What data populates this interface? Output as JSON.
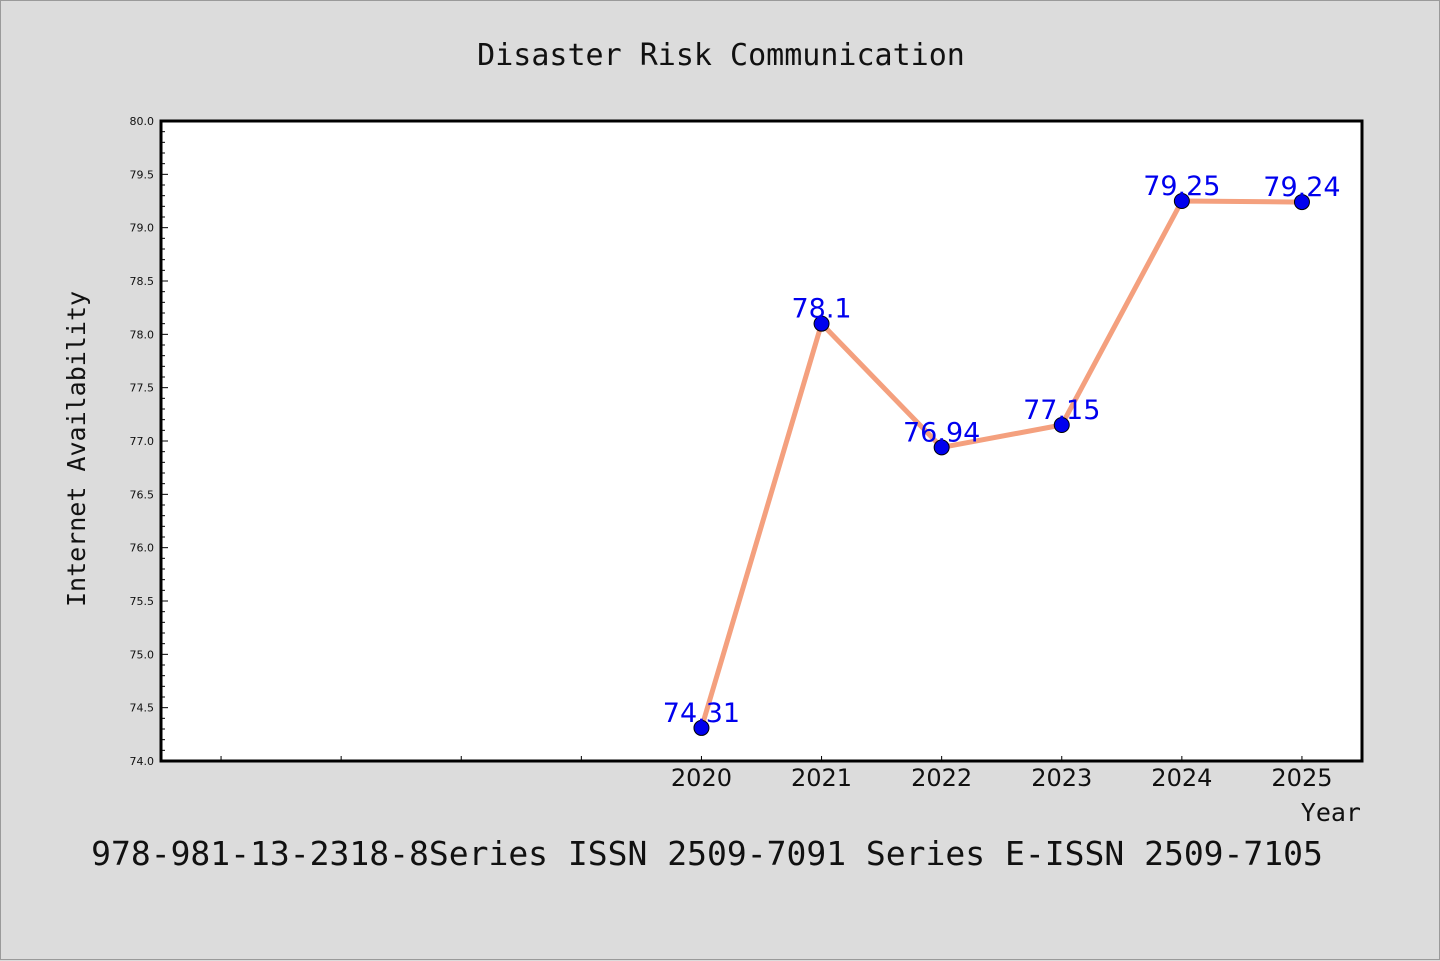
{
  "chart_data": {
    "type": "line",
    "title": "Disaster Risk Communication",
    "xlabel": "Year",
    "ylabel": "Internet Availability",
    "x": [
      2020,
      2021,
      2022,
      2023,
      2024,
      2025
    ],
    "xticklabels": [
      "2020",
      "2021",
      "2022",
      "2023",
      "2024",
      "2025"
    ],
    "series": [
      {
        "values": [
          74.31,
          78.1,
          76.94,
          77.15,
          79.25,
          79.24
        ],
        "labels": [
          "74.31",
          "78.1",
          "76.94",
          "77.15",
          "79.25",
          "79.24"
        ],
        "line_color": "#f4a07e",
        "marker_color": "#0000ee"
      }
    ],
    "ylim": [
      74.0,
      80.0
    ],
    "yticks": [
      "74.0",
      "74.5",
      "75.0",
      "75.5",
      "76.0",
      "76.5",
      "77.0",
      "77.5",
      "78.0",
      "78.5",
      "79.0",
      "79.5",
      "80.0"
    ],
    "xlim": [
      2015.5,
      2025.5
    ],
    "grid": false,
    "footer": "978-981-13-2318-8Series ISSN 2509-7091 Series E-ISSN 2509-7105"
  }
}
